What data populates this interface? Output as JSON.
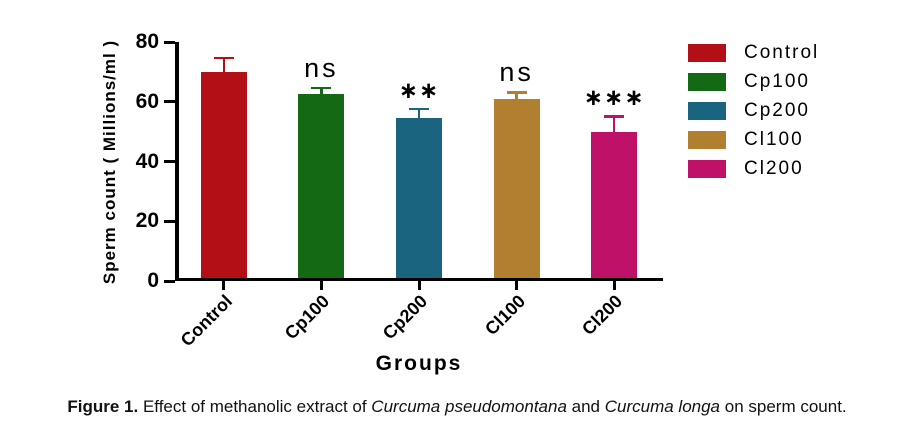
{
  "chart_data": {
    "type": "bar",
    "title": "",
    "xlabel": "Groups",
    "ylabel": "Sperm count ( Millions/ml )",
    "ylim": [
      0,
      80
    ],
    "y_ticks": [
      0,
      20,
      40,
      60,
      80
    ],
    "grid": false,
    "axis_color": "#000000",
    "categories": [
      "Control",
      "Cp100",
      "Cp200",
      "Cl100",
      "Cl200"
    ],
    "series": [
      {
        "name": "Sperm count (Millions/ml)",
        "values": [
          70,
          62.5,
          54.5,
          61,
          50
        ],
        "errors_plus": [
          5,
          2.5,
          3.5,
          2.5,
          5.5
        ]
      }
    ],
    "significance_labels": [
      "",
      "ns",
      "∗∗",
      "ns",
      "∗∗∗"
    ],
    "bar_colors": [
      "#b21016",
      "#146914",
      "#1b647f",
      "#b08030",
      "#bf1167"
    ],
    "legend": {
      "position": "right",
      "items": [
        {
          "label": "Control",
          "color": "#b21016"
        },
        {
          "label": "Cp100",
          "color": "#146914"
        },
        {
          "label": "Cp200",
          "color": "#1b647f"
        },
        {
          "label": "Cl100",
          "color": "#b08030"
        },
        {
          "label": "Cl200",
          "color": "#bf1167"
        }
      ]
    }
  },
  "caption": {
    "label": "Figure 1.",
    "part1": " Effect of methanolic extract of ",
    "italic1": "Curcuma pseudomontana",
    "part2": " and ",
    "italic2": "Curcuma longa",
    "part3": " on sperm count."
  }
}
